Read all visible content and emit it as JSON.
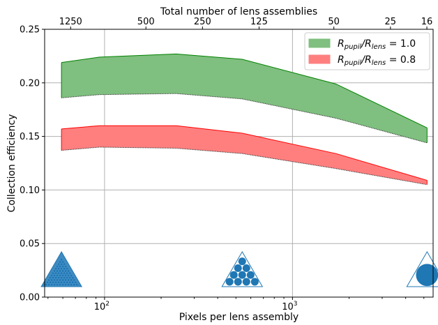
{
  "chart_data": {
    "type": "area",
    "xscale": "log",
    "xlabel": "Pixels per lens assembly",
    "ylabel": "Collection efficiency",
    "top_xlabel": "Total number of lens assemblies",
    "xlim": [
      48,
      5600
    ],
    "ylim": [
      0,
      0.25
    ],
    "grid": true,
    "legend_position": "top-right",
    "x_ticks": [
      {
        "value": 100,
        "base": "10",
        "exp": "2"
      },
      {
        "value": 1000,
        "base": "10",
        "exp": "3"
      }
    ],
    "y_ticks": [
      "0.00",
      "0.05",
      "0.10",
      "0.15",
      "0.20",
      "0.25"
    ],
    "top_ticks": [
      {
        "label": "1250",
        "x": 66
      },
      {
        "label": "500",
        "x": 166
      },
      {
        "label": "250",
        "x": 332
      },
      {
        "label": "125",
        "x": 664
      },
      {
        "label": "50",
        "x": 1660
      },
      {
        "label": "25",
        "x": 3320
      },
      {
        "label": "16",
        "x": 5188
      }
    ],
    "series": [
      {
        "name_parts": [
          "R",
          "pupil",
          "/R",
          "lens",
          " = 1.0"
        ],
        "color": "#008000",
        "fill": "#7fbf7f",
        "x": [
          59,
          94,
          240,
          540,
          1700,
          5200
        ],
        "upper": [
          0.219,
          0.224,
          0.227,
          0.222,
          0.199,
          0.158
        ],
        "lower": [
          0.186,
          0.189,
          0.19,
          0.185,
          0.167,
          0.144
        ]
      },
      {
        "name_parts": [
          "R",
          "pupil",
          "/R",
          "lens",
          " = 0.8"
        ],
        "color": "#ff0000",
        "fill": "#ff7f7f",
        "x": [
          59,
          94,
          240,
          540,
          1700,
          5200
        ],
        "upper": [
          0.157,
          0.16,
          0.16,
          0.153,
          0.134,
          0.109
        ],
        "lower": [
          0.137,
          0.14,
          0.139,
          0.134,
          0.12,
          0.105
        ]
      }
    ],
    "markers": [
      {
        "name": "triangle-many-lenses",
        "x": 59,
        "rows": 12
      },
      {
        "name": "triangle-ten-lenses",
        "x": 540,
        "rows": 4
      },
      {
        "name": "triangle-single-lens",
        "x": 5200,
        "rows": 1
      }
    ],
    "colors": {
      "marker": "#1f77b4",
      "grid": "#b0b0b0"
    }
  }
}
